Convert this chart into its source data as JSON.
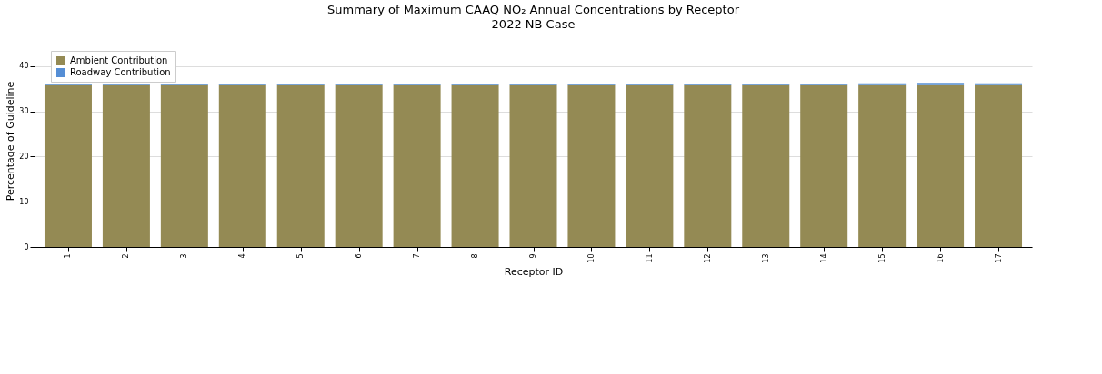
{
  "chart_data": {
    "type": "bar",
    "title": "Summary of Maximum CAAQ NO₂ Annual Concentrations by Receptor",
    "subtitle": "2022 NB Case",
    "xlabel": "Receptor ID",
    "ylabel": "Percentage of Guideline",
    "categories": [
      "1",
      "2",
      "3",
      "4",
      "5",
      "6",
      "7",
      "8",
      "9",
      "10",
      "11",
      "12",
      "13",
      "14",
      "15",
      "16",
      "17"
    ],
    "stacked": true,
    "series": [
      {
        "name": "Ambient Contribution",
        "color": "#948a54",
        "values": [
          35.8,
          35.8,
          35.8,
          35.8,
          35.8,
          35.8,
          35.8,
          35.8,
          35.8,
          35.8,
          35.8,
          35.8,
          35.8,
          35.8,
          35.8,
          35.8,
          35.8
        ]
      },
      {
        "name": "Roadway Contribution",
        "color": "#558ed5",
        "values": [
          0.3,
          0.3,
          0.3,
          0.3,
          0.3,
          0.3,
          0.3,
          0.3,
          0.3,
          0.3,
          0.3,
          0.3,
          0.3,
          0.3,
          0.4,
          0.5,
          0.4
        ]
      }
    ],
    "ylim": [
      0,
      47
    ],
    "yticks": [
      0,
      10,
      20,
      30,
      40
    ],
    "grid": "y",
    "legend": "top left"
  }
}
